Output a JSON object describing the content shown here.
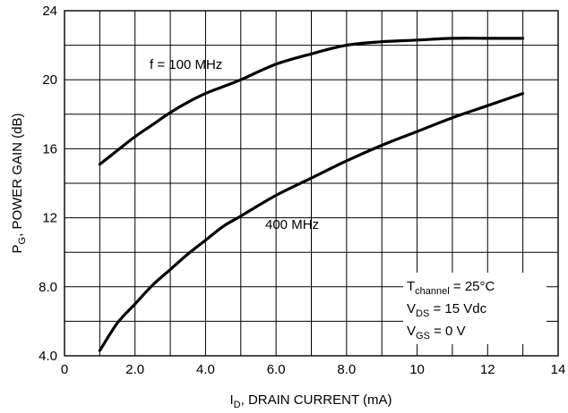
{
  "chart_data": {
    "type": "line",
    "xlabel": {
      "main": "I",
      "sub": "D",
      "rest": ", DRAIN CURRENT (mA)"
    },
    "ylabel": {
      "main": "P",
      "sub": "G",
      "rest": ", POWER GAIN (dB)"
    },
    "xlim": [
      0,
      14
    ],
    "ylim": [
      4,
      24
    ],
    "x_ticks": [
      {
        "value": 0,
        "label": "0"
      },
      {
        "value": 2,
        "label": "2.0"
      },
      {
        "value": 4,
        "label": "4.0"
      },
      {
        "value": 6,
        "label": "6.0"
      },
      {
        "value": 8,
        "label": "8.0"
      },
      {
        "value": 10,
        "label": "10"
      },
      {
        "value": 12,
        "label": "12"
      },
      {
        "value": 14,
        "label": "14"
      }
    ],
    "y_ticks": [
      {
        "value": 4,
        "label": "4.0"
      },
      {
        "value": 8,
        "label": "8.0"
      },
      {
        "value": 12,
        "label": "12"
      },
      {
        "value": 16,
        "label": "16"
      },
      {
        "value": 20,
        "label": "20"
      },
      {
        "value": 24,
        "label": "24"
      }
    ],
    "grid": true,
    "series": [
      {
        "name": "f = 100 MHz",
        "x": [
          1.0,
          1.5,
          2.0,
          2.5,
          3.0,
          3.5,
          4.0,
          4.5,
          5.0,
          6.0,
          7.0,
          8.0,
          9.0,
          10.0,
          11.0,
          12.0,
          13.0
        ],
        "y": [
          15.1,
          15.9,
          16.7,
          17.4,
          18.1,
          18.7,
          19.2,
          19.6,
          20.0,
          20.9,
          21.5,
          22.0,
          22.2,
          22.3,
          22.4,
          22.4,
          22.4
        ]
      },
      {
        "name": "400 MHz",
        "x": [
          1.0,
          1.5,
          2.0,
          2.5,
          3.0,
          3.5,
          4.0,
          4.5,
          5.0,
          6.0,
          7.0,
          8.0,
          9.0,
          10.0,
          11.0,
          12.0,
          13.0
        ],
        "y": [
          4.3,
          5.9,
          7.0,
          8.1,
          9.0,
          9.9,
          10.7,
          11.5,
          12.1,
          13.3,
          14.3,
          15.3,
          16.2,
          17.0,
          17.8,
          18.5,
          19.2
        ]
      }
    ],
    "annotation": [
      {
        "main": "T",
        "sub": "channel",
        "rest": " = 25°C"
      },
      {
        "main": "V",
        "sub": "DS",
        "rest": " = 15 Vdc"
      },
      {
        "main": "V",
        "sub": "GS",
        "rest": " = 0 V"
      }
    ]
  }
}
